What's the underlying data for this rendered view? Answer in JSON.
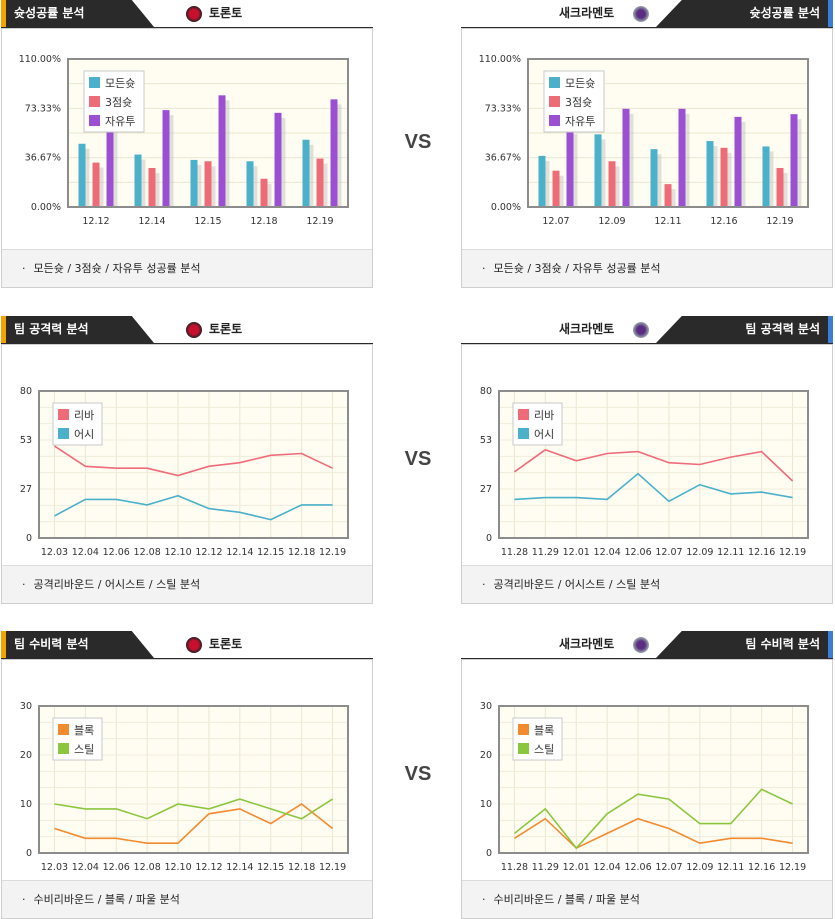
{
  "vs_label": "VS",
  "colors": {
    "left_accent": "#f5a300",
    "right_accent": "#3b7ed8",
    "header_bg": "#2a2a2a",
    "plot_bg": "#fffdf2",
    "made_all": "#4bb0c9",
    "made_3pt": "#ee6b78",
    "made_ft": "#9b4fd1",
    "rebound": "#ee6b78",
    "assist": "#4bb0c9",
    "block": "#f28a30",
    "steal": "#8cc63f"
  },
  "panels": [
    {
      "id": "shooting-left",
      "side": "left",
      "title": "슛성공률 분석",
      "team": "토론토",
      "team_icon": "raptors-logo-icon",
      "caption": "모든슛 / 3점슛 / 자유투 성공률 분석",
      "chart_data": {
        "type": "bar",
        "categories": [
          "12.12",
          "12.14",
          "12.15",
          "12.18",
          "12.19"
        ],
        "ylim": [
          0,
          110
        ],
        "yticks": [
          "0.00%",
          "36.67%",
          "73.33%",
          "110.00%"
        ],
        "series": [
          {
            "name": "모든슛",
            "color": "#4bb0c9",
            "values": [
              47,
              39,
              35,
              34,
              50
            ]
          },
          {
            "name": "3점슛",
            "color": "#ee6b78",
            "values": [
              33,
              29,
              34,
              21,
              36
            ]
          },
          {
            "name": "자유투",
            "color": "#9b4fd1",
            "values": [
              60,
              72,
              83,
              70,
              80
            ]
          }
        ]
      }
    },
    {
      "id": "shooting-right",
      "side": "right",
      "title": "슛성공률 분석",
      "team": "새크라멘토",
      "team_icon": "kings-logo-icon",
      "caption": "모든슛 / 3점슛 / 자유투 성공률 분석",
      "chart_data": {
        "type": "bar",
        "categories": [
          "12.07",
          "12.09",
          "12.11",
          "12.16",
          "12.19"
        ],
        "ylim": [
          0,
          110
        ],
        "yticks": [
          "0.00%",
          "36.67%",
          "73.33%",
          "110.00%"
        ],
        "series": [
          {
            "name": "모든슛",
            "color": "#4bb0c9",
            "values": [
              38,
              54,
              43,
              49,
              45
            ]
          },
          {
            "name": "3점슛",
            "color": "#ee6b78",
            "values": [
              27,
              34,
              17,
              44,
              29
            ]
          },
          {
            "name": "자유투",
            "color": "#9b4fd1",
            "values": [
              58,
              73,
              73,
              67,
              69
            ]
          }
        ]
      }
    },
    {
      "id": "offense-left",
      "side": "left",
      "title": "팀 공격력 분석",
      "team": "토론토",
      "team_icon": "raptors-logo-icon",
      "caption": "공격리바운드 / 어시스트 / 스틸 분석",
      "chart_data": {
        "type": "line",
        "categories": [
          "12.03",
          "12.04",
          "12.06",
          "12.08",
          "12.10",
          "12.12",
          "12.14",
          "12.15",
          "12.18",
          "12.19"
        ],
        "ylim": [
          0,
          80
        ],
        "yticks": [
          "0",
          "27",
          "53",
          "80"
        ],
        "series": [
          {
            "name": "리바",
            "color": "#ee6b78",
            "values": [
              50,
              39,
              38,
              38,
              34,
              39,
              41,
              45,
              46,
              38
            ]
          },
          {
            "name": "어시",
            "color": "#4bb0c9",
            "values": [
              12,
              21,
              21,
              18,
              23,
              16,
              14,
              10,
              18,
              18
            ]
          }
        ]
      }
    },
    {
      "id": "offense-right",
      "side": "right",
      "title": "팀 공격력 분석",
      "team": "새크라멘토",
      "team_icon": "kings-logo-icon",
      "caption": "공격리바운드 / 어시스트 / 스틸 분석",
      "chart_data": {
        "type": "line",
        "categories": [
          "11.28",
          "11.29",
          "12.01",
          "12.04",
          "12.06",
          "12.07",
          "12.09",
          "12.11",
          "12.16",
          "12.19"
        ],
        "ylim": [
          0,
          80
        ],
        "yticks": [
          "0",
          "27",
          "53",
          "80"
        ],
        "series": [
          {
            "name": "리바",
            "color": "#ee6b78",
            "values": [
              36,
              48,
              42,
              46,
              47,
              41,
              40,
              44,
              47,
              31
            ]
          },
          {
            "name": "어시",
            "color": "#4bb0c9",
            "values": [
              21,
              22,
              22,
              21,
              35,
              20,
              29,
              24,
              25,
              22
            ]
          }
        ]
      }
    },
    {
      "id": "defense-left",
      "side": "left",
      "title": "팀 수비력 분석",
      "team": "토론토",
      "team_icon": "raptors-logo-icon",
      "caption": "수비리바운드 / 블록 / 파울 분석",
      "chart_data": {
        "type": "line",
        "categories": [
          "12.03",
          "12.04",
          "12.06",
          "12.08",
          "12.10",
          "12.12",
          "12.14",
          "12.15",
          "12.18",
          "12.19"
        ],
        "ylim": [
          0,
          30
        ],
        "yticks": [
          "0",
          "10",
          "20",
          "30"
        ],
        "series": [
          {
            "name": "블록",
            "color": "#f28a30",
            "values": [
              5,
              3,
              3,
              2,
              2,
              8,
              9,
              6,
              10,
              5
            ]
          },
          {
            "name": "스틸",
            "color": "#8cc63f",
            "values": [
              10,
              9,
              9,
              7,
              10,
              9,
              11,
              9,
              7,
              11
            ]
          }
        ]
      }
    },
    {
      "id": "defense-right",
      "side": "right",
      "title": "팀 수비력 분석",
      "team": "새크라멘토",
      "team_icon": "kings-logo-icon",
      "caption": "수비리바운드 / 블록 / 파울 분석",
      "chart_data": {
        "type": "line",
        "categories": [
          "11.28",
          "11.29",
          "12.01",
          "12.04",
          "12.06",
          "12.07",
          "12.09",
          "12.11",
          "12.16",
          "12.19"
        ],
        "ylim": [
          0,
          30
        ],
        "yticks": [
          "0",
          "10",
          "20",
          "30"
        ],
        "series": [
          {
            "name": "블록",
            "color": "#f28a30",
            "values": [
              3,
              7,
              1,
              4,
              7,
              5,
              2,
              3,
              3,
              2
            ]
          },
          {
            "name": "스틸",
            "color": "#8cc63f",
            "values": [
              4,
              9,
              1,
              8,
              12,
              11,
              6,
              6,
              13,
              10
            ]
          }
        ]
      }
    }
  ]
}
